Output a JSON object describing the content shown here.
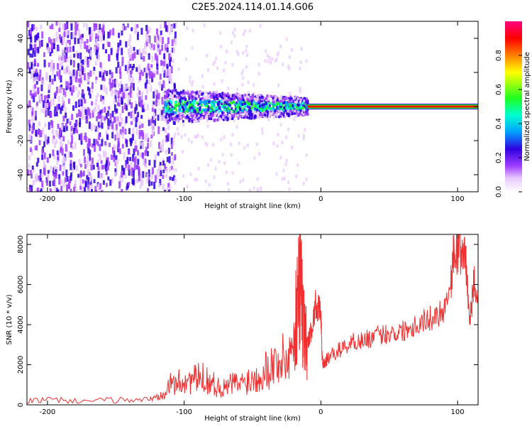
{
  "title": "C2E5.2024.114.01.14.G06",
  "colors": {
    "snr_line": "#f03030",
    "spectrogram_bg": "#ffffff",
    "colormap": [
      "#ffffff",
      "#e8c8ff",
      "#a040ff",
      "#3000e0",
      "#00a0ff",
      "#00ffd0",
      "#20ff20",
      "#ffff00",
      "#ff8000",
      "#ff0000",
      "#ff0080"
    ]
  },
  "chart_data": [
    {
      "type": "heatmap",
      "name": "spectrogram",
      "title": "",
      "xlabel": "Height of straight line (km)",
      "ylabel": "Frequency (Hz)",
      "xlim": [
        -215,
        115
      ],
      "ylim": [
        -50,
        50
      ],
      "x_ticks": [
        -200,
        -100,
        0,
        100
      ],
      "y_ticks": [
        -40,
        -20,
        0,
        20,
        40
      ],
      "grid": false,
      "regions": [
        {
          "x_range": [
            -215,
            -110
          ],
          "description": "broadband noise spread over -50 to 50 Hz"
        },
        {
          "x_range": [
            -115,
            -10
          ],
          "center_hz": 0,
          "half_width_hz": 10
        },
        {
          "x_range": [
            -10,
            115
          ],
          "center_hz": 0,
          "half_width_hz": 1
        }
      ],
      "colorbar": {
        "label": "Normalized spectral amplitude",
        "range": [
          0.0,
          1.0
        ],
        "ticks": [
          0.0,
          0.2,
          0.4,
          0.6,
          0.8
        ]
      }
    },
    {
      "type": "line",
      "name": "snr",
      "title": "",
      "xlabel": "Height of straight line (km)",
      "ylabel": "SNR (10 * v/v)",
      "xlim": [
        -215,
        115
      ],
      "ylim": [
        0,
        8500
      ],
      "x_ticks": [
        -200,
        -100,
        0,
        100
      ],
      "y_ticks": [
        0,
        2000,
        4000,
        6000,
        8000
      ],
      "grid": false,
      "series": [
        {
          "x": [
            -215,
            -200,
            -180,
            -160,
            -140,
            -125,
            -120,
            -115,
            -110,
            -105,
            -100,
            -95,
            -90,
            -85,
            -80,
            -75,
            -70,
            -65,
            -60,
            -55,
            -50,
            -45,
            -40,
            -35,
            -30,
            -25,
            -20,
            -18,
            -16,
            -15,
            -14,
            -12,
            -10,
            -8,
            -6,
            -4,
            -2,
            0,
            1,
            2,
            3,
            5,
            10,
            15,
            20,
            25,
            30,
            35,
            40,
            45,
            50,
            55,
            60,
            65,
            70,
            75,
            80,
            85,
            90,
            95,
            97,
            100,
            103,
            106,
            108,
            110,
            112,
            115
          ],
          "y": [
            200,
            250,
            200,
            220,
            250,
            280,
            400,
            700,
            1000,
            1100,
            1200,
            1250,
            1300,
            1350,
            1100,
            900,
            800,
            1100,
            1000,
            1200,
            1300,
            1500,
            1800,
            2000,
            2200,
            2300,
            3000,
            4500,
            6000,
            7000,
            5000,
            3500,
            3000,
            3500,
            4000,
            5000,
            4800,
            4600,
            2200,
            2000,
            2100,
            2300,
            2600,
            2800,
            3000,
            3200,
            3200,
            3300,
            3400,
            3500,
            3600,
            3600,
            3700,
            3900,
            4000,
            4200,
            4300,
            4500,
            4800,
            6000,
            7500,
            7600,
            7600,
            7400,
            4800,
            4500,
            6200,
            5500
          ]
        }
      ]
    }
  ]
}
